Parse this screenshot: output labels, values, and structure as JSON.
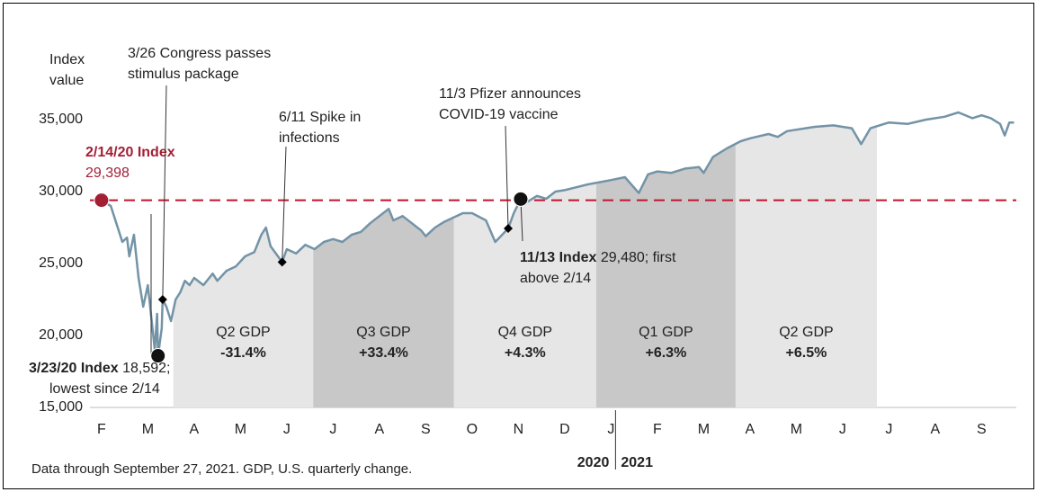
{
  "chart_data": {
    "type": "line",
    "ylabel": [
      "Index",
      "value"
    ],
    "x": [
      0,
      0.2,
      0.35,
      0.45,
      0.55,
      0.6,
      0.7,
      0.8,
      0.9,
      1.0,
      1.1,
      1.15,
      1.2,
      1.22,
      1.3,
      1.32,
      1.4,
      1.5,
      1.6,
      1.7,
      1.8,
      1.9,
      2.0,
      2.2,
      2.4,
      2.5,
      2.7,
      2.9,
      3.1,
      3.3,
      3.45,
      3.55,
      3.65,
      3.9,
      4.0,
      4.2,
      4.4,
      4.6,
      4.8,
      5.0,
      5.2,
      5.4,
      5.6,
      5.8,
      6.0,
      6.2,
      6.3,
      6.5,
      6.7,
      6.9,
      7.0,
      7.2,
      7.4,
      7.6,
      7.8,
      8.0,
      8.3,
      8.5,
      8.65,
      8.78,
      8.9,
      9.05,
      9.2,
      9.4,
      9.6,
      9.8,
      10.0,
      10.5,
      11.0,
      11.3,
      11.6,
      11.8,
      12.0,
      12.3,
      12.6,
      12.9,
      13.0,
      13.2,
      13.5,
      13.8,
      14.0,
      14.4,
      14.6,
      14.8,
      15.0,
      15.4,
      15.8,
      16.2,
      16.4,
      16.6,
      17.0,
      17.4,
      17.8,
      18.2,
      18.5,
      18.8,
      19.0,
      19.2,
      19.4,
      19.5,
      19.6,
      19.7
    ],
    "series": [
      {
        "color": "#7393a7",
        "values": [
          29398,
          29000,
          27500,
          26500,
          26800,
          25500,
          27000,
          24000,
          22000,
          23500,
          20500,
          19000,
          21500,
          18592,
          20500,
          22500,
          22000,
          21000,
          22500,
          23000,
          23800,
          23500,
          24000,
          23500,
          24300,
          23800,
          24500,
          24800,
          25500,
          25800,
          27000,
          27500,
          26200,
          25100,
          26000,
          25700,
          26300,
          26000,
          26500,
          26700,
          26500,
          27000,
          27200,
          27800,
          28300,
          28800,
          28000,
          28300,
          27800,
          27300,
          26900,
          27500,
          27900,
          28200,
          28500,
          28500,
          28000,
          26500,
          27000,
          27440,
          28500,
          29480,
          29300,
          29700,
          29500,
          30000,
          30100,
          30500,
          30800,
          31000,
          29900,
          31200,
          31400,
          31300,
          31600,
          31700,
          31300,
          32400,
          33000,
          33500,
          33700,
          34000,
          33800,
          34200,
          34300,
          34500,
          34600,
          34400,
          33300,
          34400,
          34800,
          34700,
          35000,
          35200,
          35500,
          35100,
          35300,
          35100,
          34700,
          33900,
          34800,
          34800
        ]
      }
    ],
    "xlim": [
      -0.25,
      19.75
    ],
    "xticks": [
      {
        "value": 0,
        "label": "F"
      },
      {
        "value": 1,
        "label": "M"
      },
      {
        "value": 2,
        "label": "A"
      },
      {
        "value": 3,
        "label": "M"
      },
      {
        "value": 4,
        "label": "J"
      },
      {
        "value": 5,
        "label": "J"
      },
      {
        "value": 6,
        "label": "A"
      },
      {
        "value": 7,
        "label": "S"
      },
      {
        "value": 8,
        "label": "O"
      },
      {
        "value": 9,
        "label": "N"
      },
      {
        "value": 10,
        "label": "D"
      },
      {
        "value": 11,
        "label": "J"
      },
      {
        "value": 12,
        "label": "F"
      },
      {
        "value": 13,
        "label": "M"
      },
      {
        "value": 14,
        "label": "A"
      },
      {
        "value": 15,
        "label": "M"
      },
      {
        "value": 16,
        "label": "J"
      },
      {
        "value": 17,
        "label": "J"
      },
      {
        "value": 18,
        "label": "A"
      },
      {
        "value": 19,
        "label": "S"
      }
    ],
    "ylim": [
      15000,
      36000
    ],
    "yticks": [
      {
        "value": 15000,
        "label": "15,000"
      },
      {
        "value": 20000,
        "label": "20,000"
      },
      {
        "value": 25000,
        "label": "25,000"
      },
      {
        "value": 30000,
        "label": "30,000"
      },
      {
        "value": 35000,
        "label": "35,000"
      }
    ],
    "reference_line": {
      "value": 29398,
      "color": "#c0142d"
    },
    "quarters": [
      {
        "label": "Q2 GDP",
        "value": -31.4,
        "value_label": "-31.4%",
        "start": 1.55,
        "end": 4.57,
        "color": "#e6e6e6"
      },
      {
        "label": "Q3 GDP",
        "value": 33.4,
        "value_label": "+33.4%",
        "start": 4.57,
        "end": 7.61,
        "color": "#c8c8c8"
      },
      {
        "label": "Q4 GDP",
        "value": 4.3,
        "value_label": "+4.3%",
        "start": 7.61,
        "end": 10.68,
        "color": "#e6e6e6"
      },
      {
        "label": "Q1 GDP",
        "value": 6.3,
        "value_label": "+6.3%",
        "start": 10.68,
        "end": 13.69,
        "color": "#c8c8c8"
      },
      {
        "label": "Q2 GDP",
        "value": 6.5,
        "value_label": "+6.5%",
        "start": 13.69,
        "end": 16.74,
        "color": "#e6e6e6"
      }
    ],
    "annotations": [
      {
        "bold": "2/14/20 Index",
        "lines": [
          "29,398"
        ],
        "x": 0,
        "value": 29398,
        "marker": "circle",
        "color": "#a31f34"
      },
      {
        "lines": [
          "3/26 Congress passes",
          "stimulus package"
        ],
        "x": 1.32,
        "value": 22500,
        "marker": "diamond"
      },
      {
        "lines": [
          "6/11 Spike in",
          "infections"
        ],
        "x": 3.9,
        "value": 25100,
        "marker": "diamond"
      },
      {
        "lines": [
          "11/3 Pfizer announces",
          "COVID-19 vaccine"
        ],
        "x": 8.78,
        "value": 27440,
        "marker": "diamond"
      },
      {
        "bold": "11/13 Index",
        "lines": [
          "29,480; first",
          "above 2/14"
        ],
        "x": 9.05,
        "value": 29480,
        "marker": "circle"
      },
      {
        "bold": "3/23/20 Index",
        "lines": [
          "18,592;",
          "lowest since 2/14"
        ],
        "x": 1.22,
        "value": 18592,
        "marker": "circle"
      }
    ],
    "years": [
      "2020",
      "2021"
    ],
    "footnote": "Data through September 27, 2021. GDP, U.S. quarterly change."
  }
}
